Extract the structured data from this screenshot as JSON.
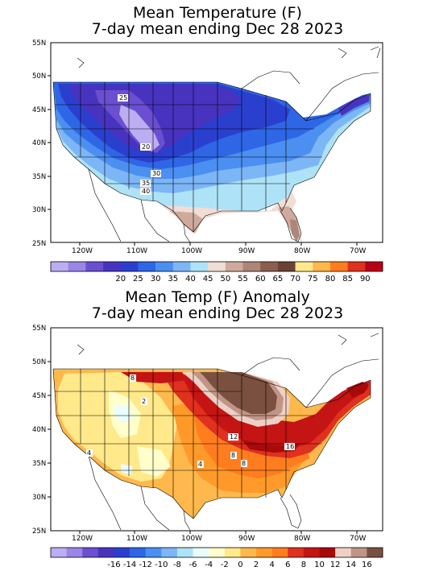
{
  "top": {
    "title_line1": "Mean Temperature (F)",
    "title_line2": "7-day mean ending Dec 28 2023",
    "lat_labels": [
      "55N",
      "50N",
      "45N",
      "40N",
      "35N",
      "30N",
      "25N"
    ],
    "lon_labels": [
      "120W",
      "110W",
      "100W",
      "90W",
      "80W",
      "70W"
    ],
    "map_labels": [
      "25",
      "20",
      "30",
      "35",
      "40"
    ],
    "colorbar_labels": [
      "20",
      "25",
      "30",
      "35",
      "40",
      "45",
      "50",
      "55",
      "60",
      "65",
      "70",
      "75",
      "80",
      "85",
      "90"
    ],
    "colorbar_colors": [
      "#bcaef2",
      "#9a86e6",
      "#6a4fd1",
      "#4833bf",
      "#2b3fcf",
      "#2f66e6",
      "#4b8ff0",
      "#7db6f6",
      "#aee3f7",
      "#f0ddd6",
      "#cfaa9c",
      "#ad8579",
      "#8c5e50",
      "#6a4236",
      "#ffe98a",
      "#ffb84c",
      "#ff7d1f",
      "#e0301e",
      "#b80016"
    ],
    "region_colors": {
      "very_cold": "#bcaef2",
      "cold1": "#6a4fd1",
      "cold2": "#4833bf",
      "cold3": "#2b3fcf",
      "cold4": "#2f66e6",
      "cold5": "#4b8ff0",
      "cool1": "#7db6f6",
      "cool2": "#aee3f7",
      "mild1": "#f0ddd6",
      "mild2": "#cfaa9c",
      "warm": "#ad8579"
    }
  },
  "bottom": {
    "title_line1": "Mean Temp (F) Anomaly",
    "title_line2": "7-day mean ending Dec 28 2023",
    "lat_labels": [
      "55N",
      "50N",
      "45N",
      "40N",
      "35N",
      "30N",
      "25N"
    ],
    "lon_labels": [
      "120W",
      "110W",
      "100W",
      "90W",
      "80W",
      "70W"
    ],
    "map_labels": [
      "8",
      "2",
      "12",
      "4",
      "8",
      "16",
      "8",
      "4"
    ],
    "colorbar_labels": [
      "-16",
      "-14",
      "-12",
      "-10",
      "-8",
      "-6",
      "-4",
      "-2",
      "0",
      "2",
      "4",
      "6",
      "8",
      "10",
      "12",
      "14",
      "16"
    ],
    "colorbar_colors": [
      "#bcaef2",
      "#9a86e6",
      "#6a4fd1",
      "#4833bf",
      "#2b3fcf",
      "#2f66e6",
      "#4b8ff0",
      "#7db6f6",
      "#aee3f7",
      "#e9fdfd",
      "#ffffcc",
      "#ffe98a",
      "#ffb84c",
      "#ff9a2a",
      "#ff7d1f",
      "#e0301e",
      "#c41414",
      "#a80a0a",
      "#efd0c6",
      "#c09585",
      "#7a5040"
    ],
    "region_colors": {
      "near_zero": "#e9fdfd",
      "pale": "#ffffcc",
      "light": "#ffe98a",
      "orange1": "#ffb84c",
      "orange2": "#ff9a2a",
      "orange3": "#ff7d1f",
      "red1": "#e0301e",
      "red2": "#c41414",
      "red3": "#a80a0a",
      "pink": "#efd0c6",
      "brown1": "#c09585",
      "brown2": "#7a5040"
    }
  }
}
